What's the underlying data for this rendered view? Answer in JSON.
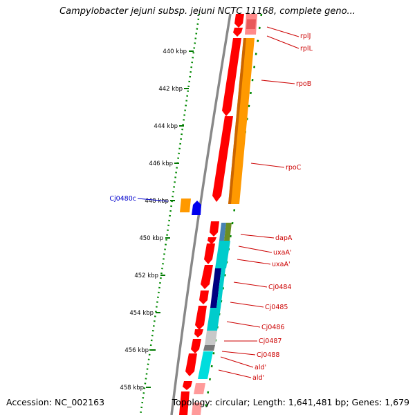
{
  "title": "Campylobacter jejuni subsp. jejuni NCTC 11168, complete geno...",
  "footer": {
    "accession": "Accession: NC_002163",
    "info": "Topology: circular; Length: 1,641,481 bp; Genes: 1,679"
  },
  "ticks": [
    "440 kbp",
    "442 kbp",
    "444 kbp",
    "446 kbp",
    "448 kbp",
    "450 kbp",
    "452 kbp",
    "454 kbp",
    "456 kbp",
    "458 kbp"
  ],
  "gene_labels": {
    "forward": [
      "rplJ",
      "rplL",
      "rpoB",
      "rpoC",
      "dapA",
      "uxaA'",
      "uxaA'",
      "Cj0484",
      "Cj0485",
      "Cj0486",
      "Cj0487",
      "Cj0488",
      "ald'",
      "ald'"
    ],
    "reverse": [
      "Cj0480c"
    ]
  },
  "colors": {
    "cds": "#ff0000",
    "cds_light": "#ff9a9a",
    "rpo_orange": "#ff9900",
    "reverse_gene": "#0000ee",
    "cyan_cog": "#00cccc",
    "olive_cog": "#6b8e23",
    "steelblue_cog": "#4682b4",
    "navy_cog": "#000080",
    "gray_cog": "#999999",
    "backbone": "#888888",
    "dotted_scale": "#008800"
  }
}
